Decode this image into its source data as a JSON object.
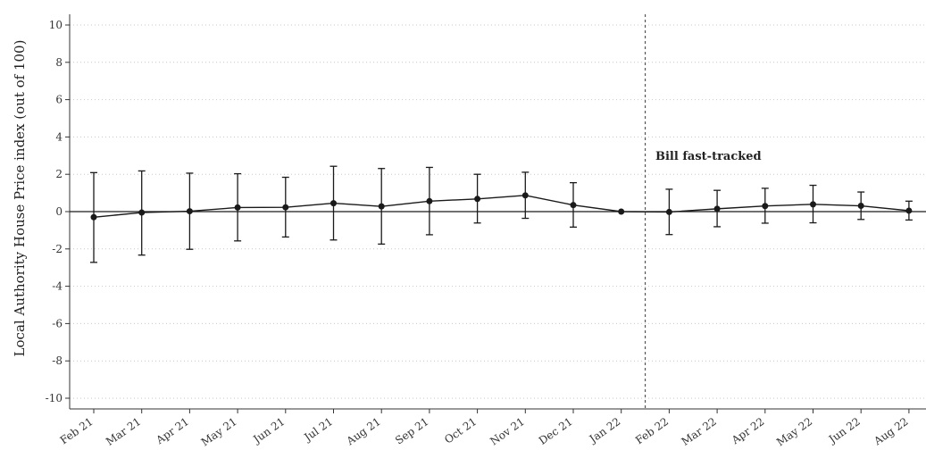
{
  "chart_data": {
    "type": "line",
    "title": "",
    "xlabel": "",
    "ylabel": "Local Authority House Price index (out of 100)",
    "ylim": [
      -10,
      10
    ],
    "yticks": [
      10,
      8,
      6,
      4,
      2,
      0,
      -2,
      -4,
      -6,
      -8,
      -10
    ],
    "ytick_labels": [
      "10",
      "8",
      "6",
      "4",
      "2",
      "0",
      "-2",
      "-4",
      "-6",
      "-8",
      "-10"
    ],
    "grid": "horizontal dotted",
    "categories": [
      "Feb 21",
      "Mar 21",
      "Apr 21",
      "May 21",
      "Jun 21",
      "Jul 21",
      "Aug 21",
      "Sep 21",
      "Oct 21",
      "Nov 21",
      "Dec 21",
      "Jan 22",
      "Feb 22",
      "Mar 22",
      "Apr 22",
      "May 22",
      "Jun 22",
      "Aug 22"
    ],
    "series": [
      {
        "values": [
          -0.3,
          -0.05,
          0.02,
          0.22,
          0.23,
          0.45,
          0.28,
          0.56,
          0.68,
          0.87,
          0.35,
          0.0,
          -0.02,
          0.15,
          0.3,
          0.39,
          0.31,
          0.05
        ],
        "ci_lower": [
          -2.72,
          -2.33,
          -2.02,
          -1.57,
          -1.36,
          -1.52,
          -1.74,
          -1.24,
          -0.61,
          -0.36,
          -0.83,
          0.0,
          -1.23,
          -0.81,
          -0.62,
          -0.6,
          -0.42,
          -0.45
        ],
        "ci_upper": [
          2.09,
          2.18,
          2.06,
          2.03,
          1.84,
          2.43,
          2.31,
          2.37,
          2.0,
          2.11,
          1.55,
          0.0,
          1.2,
          1.14,
          1.25,
          1.41,
          1.05,
          0.56
        ],
        "color": "#1a1a1a"
      }
    ],
    "reference_line": {
      "y": 0,
      "color": "#1a1a1a"
    },
    "event_line": {
      "after_category": "Jan 22",
      "label": "Bill fast-tracked",
      "style": "dashed"
    }
  }
}
